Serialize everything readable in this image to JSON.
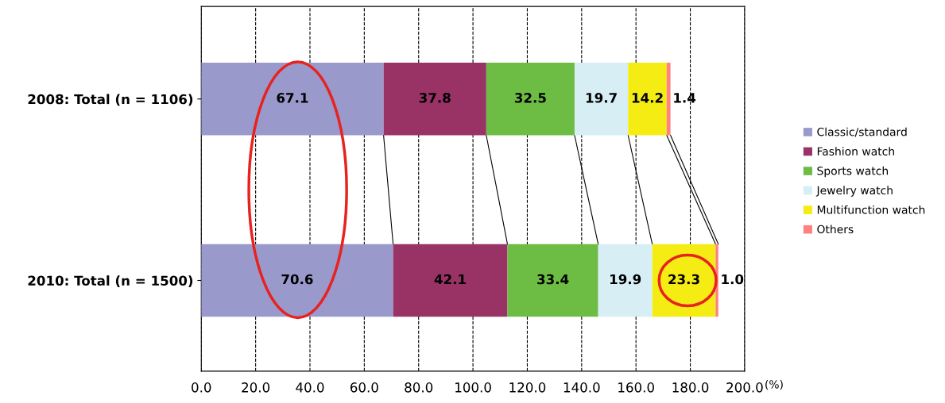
{
  "chart_data": {
    "type": "bar",
    "orientation": "horizontal",
    "stacked": true,
    "categories": [
      "2008: Total (n = 1106)",
      "2010: Total (n = 1500)"
    ],
    "series": [
      {
        "name": "Classic/standard",
        "color": "#9999cc",
        "values": [
          67.1,
          70.6
        ]
      },
      {
        "name": "Fashion watch",
        "color": "#993366",
        "values": [
          37.8,
          42.1
        ]
      },
      {
        "name": "Sports watch",
        "color": "#6dbd45",
        "values": [
          32.5,
          33.4
        ]
      },
      {
        "name": "Jewelry watch",
        "color": "#d6eef4",
        "values": [
          19.7,
          19.9
        ]
      },
      {
        "name": "Multifunction watch",
        "color": "#f5ec14",
        "values": [
          14.2,
          23.3
        ]
      },
      {
        "name": "Others",
        "color": "#ff8080",
        "values": [
          1.4,
          1.0
        ],
        "value_labels": [
          "1.4",
          "1.0"
        ]
      }
    ],
    "xlim": [
      0,
      200
    ],
    "xticks": [
      {
        "value": 0,
        "label": "0.0"
      },
      {
        "value": 20,
        "label": "20.0"
      },
      {
        "value": 40,
        "label": "40.0"
      },
      {
        "value": 60,
        "label": "60.0"
      },
      {
        "value": 80,
        "label": "80.0"
      },
      {
        "value": 100,
        "label": "100.0"
      },
      {
        "value": 120,
        "label": "120.0"
      },
      {
        "value": 140,
        "label": "140.0"
      },
      {
        "value": 160,
        "label": "160.0"
      },
      {
        "value": 180,
        "label": "180.0"
      },
      {
        "value": 200,
        "label": "200.0"
      }
    ],
    "xlabel": "(%)",
    "grid": "x",
    "data_labels": true,
    "legend": "right"
  }
}
